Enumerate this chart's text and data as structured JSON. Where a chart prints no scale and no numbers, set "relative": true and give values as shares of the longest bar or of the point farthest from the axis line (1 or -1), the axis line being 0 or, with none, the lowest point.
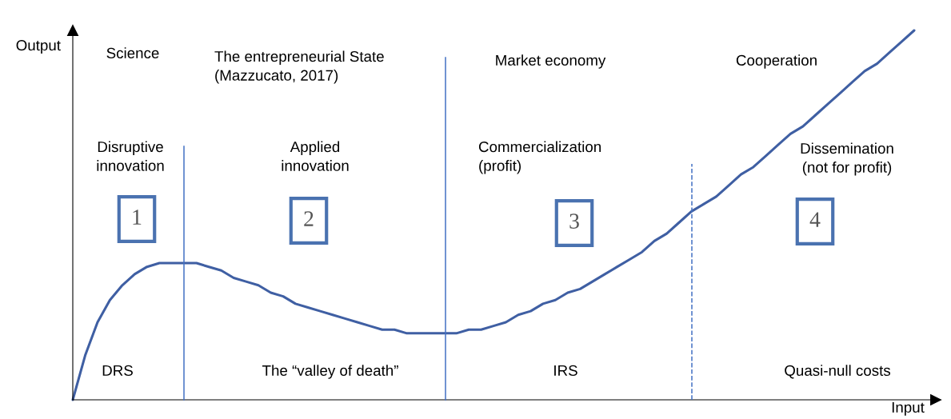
{
  "chart_data": {
    "type": "line",
    "relative": true,
    "xlabel": "Input",
    "ylabel": "Output",
    "categories": [
      null,
      null,
      null,
      null,
      null,
      null,
      null,
      null,
      null,
      null,
      null,
      null,
      null,
      null,
      null,
      null,
      null,
      null,
      null,
      null,
      null,
      null,
      null,
      null,
      null,
      null,
      null,
      null,
      null,
      null,
      null,
      null,
      null,
      null,
      null,
      null,
      null,
      null,
      null,
      null,
      null,
      null,
      null,
      null,
      null,
      null,
      null,
      null,
      null,
      null,
      null,
      null,
      null,
      null,
      null,
      null,
      null,
      null,
      null,
      null,
      null,
      null,
      null,
      null,
      null,
      null,
      null,
      null,
      null
    ],
    "series": [
      {
        "color": "#3f5fa3",
        "values": [
          0,
          0.12,
          0.21,
          0.27,
          0.31,
          0.34,
          0.36,
          0.37,
          0.37,
          0.37,
          0.37,
          0.36,
          0.35,
          0.33,
          0.32,
          0.31,
          0.29,
          0.28,
          0.26,
          0.25,
          0.24,
          0.23,
          0.22,
          0.21,
          0.2,
          0.19,
          0.19,
          0.18,
          0.18,
          0.18,
          0.18,
          0.18,
          0.19,
          0.19,
          0.2,
          0.21,
          0.23,
          0.24,
          0.26,
          0.27,
          0.29,
          0.3,
          0.32,
          0.34,
          0.36,
          0.38,
          0.4,
          0.43,
          0.45,
          0.48,
          0.51,
          0.53,
          0.55,
          0.58,
          0.61,
          0.63,
          0.66,
          0.69,
          0.72,
          0.74,
          0.77,
          0.8,
          0.83,
          0.86,
          0.89,
          0.91,
          0.94,
          0.97,
          1
        ]
      }
    ],
    "annotations": [
      "Science",
      "The entrepreneurial State\n(Mazzucato, 2017)",
      "Market economy",
      "Cooperation",
      "Disruptive\ninnovation",
      "Applied\ninnovation",
      "Commercialization\n(profit)",
      "Dissemination\n(not for profit)",
      "1",
      "2",
      "3",
      "4",
      "DRS",
      "The “valley of death”",
      "IRS",
      "Quasi-null costs"
    ],
    "legend": false
  }
}
